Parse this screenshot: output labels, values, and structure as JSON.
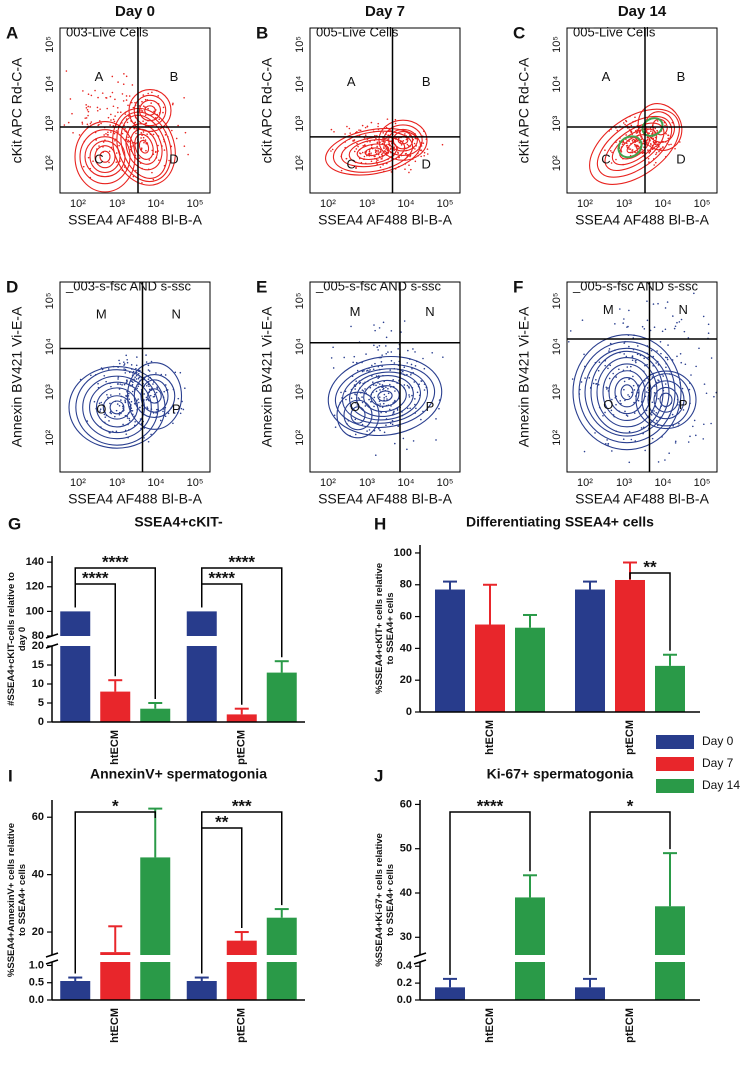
{
  "flow_panels": [
    {
      "letter": "A",
      "title": "Day 0",
      "gate": "003-Live Cells",
      "ylabel": "cKit APC Rd-C-A",
      "xlabel": "SSEA4 AF488 Bl-B-A",
      "quadrants": [
        "A",
        "B",
        "C",
        "D"
      ],
      "xticks": [
        "10²",
        "10³",
        "10⁴",
        "10⁵"
      ],
      "yticks": [
        "10²",
        "10³",
        "10⁴",
        "10⁵"
      ],
      "color": "#e8231f"
    },
    {
      "letter": "B",
      "title": "Day 7",
      "gate": "005-Live Cells",
      "ylabel": "cKit APC Rd-C-A",
      "xlabel": "SSEA4 AF488 Bl-B-A",
      "quadrants": [
        "A",
        "B",
        "C",
        "D"
      ],
      "xticks": [
        "10²",
        "10³",
        "10⁴",
        "10⁵"
      ],
      "yticks": [
        "10²",
        "10³",
        "10⁴",
        "10⁵"
      ],
      "color": "#e8231f"
    },
    {
      "letter": "C",
      "title": "Day 14",
      "gate": "005-Live Cells",
      "ylabel": "cKit APC Rd-C-A",
      "xlabel": "SSEA4 AF488 Bl-B-A",
      "quadrants": [
        "A",
        "B",
        "C",
        "D"
      ],
      "xticks": [
        "10²",
        "10³",
        "10⁴",
        "10⁵"
      ],
      "yticks": [
        "10²",
        "10³",
        "10⁴",
        "10⁵"
      ],
      "color": "#e8231f",
      "overlay_color": "#3fa34d"
    },
    {
      "letter": "D",
      "gate": "_003-s-fsc AND s-ssc",
      "ylabel": "Annexin BV421 Vi-E-A",
      "xlabel": "SSEA4 AF488 Bl-B-A",
      "quadrants": [
        "M",
        "N",
        "O",
        "P"
      ],
      "xticks": [
        "10²",
        "10³",
        "10⁴",
        "10⁵"
      ],
      "yticks": [
        "10²",
        "10³",
        "10⁴",
        "10⁵"
      ],
      "color": "#2a3f8f"
    },
    {
      "letter": "E",
      "gate": "_005-s-fsc AND s-ssc",
      "ylabel": "Annexin BV421 Vi-E-A",
      "xlabel": "SSEA4 AF488 Bl-B-A",
      "quadrants": [
        "M",
        "N",
        "O",
        "P"
      ],
      "xticks": [
        "10²",
        "10³",
        "10⁴",
        "10⁵"
      ],
      "yticks": [
        "10²",
        "10³",
        "10⁴",
        "10⁵"
      ],
      "color": "#2a3f8f"
    },
    {
      "letter": "F",
      "gate": "_005-s-fsc AND s-ssc",
      "ylabel": "Annexin BV421 Vi-E-A",
      "xlabel": "SSEA4 AF488 Bl-B-A",
      "quadrants": [
        "M",
        "N",
        "O",
        "P"
      ],
      "xticks": [
        "10²",
        "10³",
        "10⁴",
        "10⁵"
      ],
      "yticks": [
        "10²",
        "10³",
        "10⁴",
        "10⁵"
      ],
      "color": "#2a3f8f"
    }
  ],
  "chart_data": [
    {
      "type": "bar",
      "letter": "G",
      "title": "SSEA4+cKIT-",
      "ylabel": [
        "#SSEA4+cKIT-cells relative to",
        "day 0"
      ],
      "categories": [
        "htECM",
        "ptECM"
      ],
      "series": [
        {
          "color": "#283c8c",
          "values": [
            100,
            100
          ],
          "errors": [
            null,
            null
          ]
        },
        {
          "color": "#e8262b",
          "values": [
            8,
            2
          ],
          "errors": [
            3,
            1.5
          ]
        },
        {
          "color": "#2a9a48",
          "values": [
            3.5,
            13
          ],
          "errors": [
            1.5,
            3
          ]
        }
      ],
      "ylim": [
        0,
        145
      ],
      "ybreaks": [
        [
          20,
          80
        ]
      ],
      "yticks": [
        0,
        5,
        10,
        15,
        20,
        80,
        100,
        120,
        140
      ],
      "annotations": [
        {
          "category": 0,
          "series": [
            0,
            2
          ],
          "text": "****"
        },
        {
          "category": 0,
          "series": [
            0,
            1
          ],
          "text": "****"
        },
        {
          "category": 1,
          "series": [
            0,
            2
          ],
          "text": "****"
        },
        {
          "category": 1,
          "series": [
            0,
            1
          ],
          "text": "****"
        }
      ]
    },
    {
      "type": "bar",
      "letter": "H",
      "title": "Differentiating SSEA4+ cells",
      "ylabel": [
        "%SSEA4+cKIT+ cells relative",
        "to SSEA4+ cells"
      ],
      "categories": [
        "htECM",
        "ptECM"
      ],
      "series": [
        {
          "color": "#283c8c",
          "values": [
            77,
            77
          ],
          "errors": [
            5,
            5
          ]
        },
        {
          "color": "#e8262b",
          "values": [
            55,
            83
          ],
          "errors": [
            25,
            11
          ]
        },
        {
          "color": "#2a9a48",
          "values": [
            53,
            29
          ],
          "errors": [
            8,
            7
          ]
        }
      ],
      "ylim": [
        0,
        105
      ],
      "yticks": [
        0,
        20,
        40,
        60,
        80,
        100
      ],
      "annotations": [
        {
          "category": 1,
          "series": [
            1,
            2
          ],
          "text": "**"
        }
      ]
    },
    {
      "type": "bar",
      "letter": "I",
      "title": "AnnexinV+ spermatogonia",
      "ylabel": [
        "%SSEA4+AnnexinV+ cells relative",
        "to SSEA4+ cells"
      ],
      "categories": [
        "htECM",
        "ptECM"
      ],
      "series": [
        {
          "name": "Day 0",
          "color": "#283c8c",
          "values": [
            0.55,
            0.55
          ],
          "errors": [
            0.1,
            0.1
          ]
        },
        {
          "name": "Day 7",
          "color": "#e8262b",
          "values": [
            13,
            17
          ],
          "errors": [
            9,
            3
          ]
        },
        {
          "name": "Day 14",
          "color": "#2a9a48",
          "values": [
            46,
            25
          ],
          "errors": [
            17,
            3
          ]
        }
      ],
      "ylim": [
        0,
        66
      ],
      "ybreaks": [
        [
          1.1,
          12
        ]
      ],
      "yticks": [
        {
          "value": 0,
          "label": "0.0"
        },
        0.5,
        {
          "value": 1,
          "label": "1.0"
        },
        20,
        40,
        60
      ],
      "legend": "outside-right",
      "annotations": [
        {
          "category": 0,
          "series": [
            0,
            2
          ],
          "text": "*"
        },
        {
          "category": 1,
          "series": [
            0,
            2
          ],
          "text": "***"
        },
        {
          "category": 1,
          "series": [
            0,
            1
          ],
          "text": "**"
        }
      ]
    },
    {
      "type": "bar",
      "letter": "J",
      "title": "Ki-67+ spermatogonia",
      "ylabel": [
        "%SSEA4+Ki-67+ cells relative",
        "to SSEA4+ cells"
      ],
      "categories": [
        "htECM",
        "ptECM"
      ],
      "series": [
        {
          "color": "#283c8c",
          "values": [
            0.15,
            0.15
          ],
          "errors": [
            0.1,
            0.1
          ]
        },
        {
          "color": "#e8262b",
          "values": [
            null,
            null
          ],
          "errors": [
            null,
            null
          ]
        },
        {
          "color": "#2a9a48",
          "values": [
            39,
            37
          ],
          "errors": [
            5,
            12
          ]
        }
      ],
      "ylim": [
        0,
        61
      ],
      "ybreaks": [
        [
          0.45,
          26
        ]
      ],
      "yticks": [
        {
          "value": 0,
          "label": "0.0"
        },
        0.2,
        0.4,
        30,
        40,
        50,
        60
      ],
      "annotations": [
        {
          "category": 0,
          "series": [
            0,
            2
          ],
          "text": "****"
        },
        {
          "category": 1,
          "series": [
            0,
            2
          ],
          "text": "*"
        }
      ]
    }
  ]
}
